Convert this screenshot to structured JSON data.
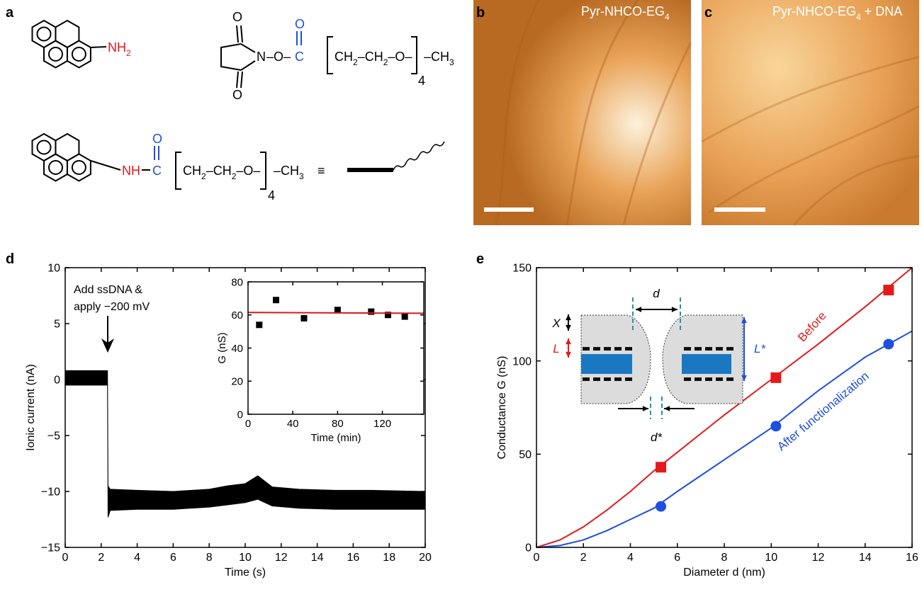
{
  "panel_labels": [
    "a",
    "b",
    "c",
    "d",
    "e"
  ],
  "panel_a": {
    "amine": [
      "NH",
      "2"
    ],
    "nhs_ester": {
      "o_top": "O",
      "n": "N",
      "o_bottom": "O",
      "link": "–O–",
      "c": "C",
      "o_carbonyl": "O",
      "chain": [
        "CH",
        "2",
        "–CH",
        "2",
        "–O–",
        "4",
        "–CH",
        "3"
      ]
    },
    "product": {
      "nh": "NH",
      "c": "C",
      "o_carbonyl": "O",
      "chain": [
        "CH",
        "2",
        "–CH",
        "2",
        "–O–",
        "4",
        "–CH",
        "3"
      ],
      "equiv": "≡"
    }
  },
  "panel_b": {
    "label": [
      "Pyr-NHCO-EG",
      "4"
    ]
  },
  "panel_c": {
    "label": [
      "Pyr-NHCO-EG",
      "4",
      " + DNA"
    ]
  },
  "chart_data": [
    {
      "type": "line",
      "x_label": "Time (s)",
      "y_label": "Ionic current (nA)",
      "xlim": [
        0,
        20
      ],
      "xticks": [
        0,
        2,
        4,
        6,
        8,
        10,
        12,
        14,
        16,
        18,
        20
      ],
      "ylim": [
        -15,
        10
      ],
      "yticks": [
        {
          "value": -15,
          "label": "−15"
        },
        {
          "value": -10,
          "label": "−10"
        },
        {
          "value": -5,
          "label": "−5"
        },
        0,
        5,
        10
      ],
      "x": [
        0,
        2.35,
        2.38,
        2.5,
        4,
        6,
        8,
        9,
        10,
        10.7,
        11.5,
        13,
        15,
        17,
        20
      ],
      "series": [
        {
          "color": "#000000",
          "values_high": [
            0.8,
            0.8,
            -9.5,
            -9.8,
            -9.9,
            -10,
            -9.8,
            -9.5,
            -9.3,
            -8.6,
            -9.6,
            -9.8,
            -9.9,
            -9.9,
            -10.0
          ],
          "values_low": [
            -0.5,
            -0.5,
            -12.3,
            -11.7,
            -11.6,
            -11.6,
            -11.4,
            -11.2,
            -11.0,
            -10.7,
            -11.3,
            -11.5,
            -11.6,
            -11.6,
            -11.6
          ]
        }
      ],
      "annotation": [
        "Add ssDNA &",
        "apply −200 mV"
      ]
    },
    {
      "type": "scatter",
      "x_label": "Time (min)",
      "y_label": "G (nS)",
      "xlim": [
        0,
        157
      ],
      "xticks": [
        0,
        40,
        80,
        120
      ],
      "ylim": [
        0,
        80
      ],
      "yticks": [
        0,
        20,
        40,
        60,
        80
      ],
      "series": [
        {
          "color": "#000000",
          "marker": "square",
          "x": [
            10,
            25,
            50,
            80,
            110,
            125,
            140
          ],
          "values": [
            54,
            69,
            58,
            63,
            62,
            60,
            59
          ]
        },
        {
          "color": "#d7191c",
          "line": true,
          "x": [
            0,
            157
          ],
          "values": [
            61.5,
            61
          ]
        }
      ]
    },
    {
      "type": "scatter",
      "x_label": "Diameter d (nm)",
      "y_label": "Conductance G (nS)",
      "xlim": [
        0,
        16
      ],
      "xticks": [
        0,
        2,
        4,
        6,
        8,
        10,
        12,
        14,
        16
      ],
      "ylim": [
        0,
        150
      ],
      "yticks": [
        0,
        50,
        100,
        150
      ],
      "series": [
        {
          "name": "Before",
          "color": "#e31a1c",
          "marker": "square",
          "x": [
            5.3,
            10.2,
            15
          ],
          "values": [
            43,
            91,
            138
          ],
          "fit_x": [
            0,
            1,
            2,
            3,
            4,
            5,
            6,
            8,
            10,
            12,
            14,
            16
          ],
          "fit_values": [
            0,
            4,
            11,
            20,
            30,
            41,
            51,
            71,
            90,
            109,
            129,
            150
          ]
        },
        {
          "name": "After functionalization",
          "color": "#1f4fe0",
          "marker": "circle",
          "x": [
            5.3,
            10.2,
            15
          ],
          "values": [
            22,
            65,
            109
          ],
          "fit_x": [
            0,
            1,
            2,
            3,
            4,
            5,
            6,
            8,
            10,
            12,
            14,
            16
          ],
          "fit_values": [
            0,
            1,
            4,
            9,
            15,
            21,
            30,
            47,
            64,
            84,
            102,
            116
          ]
        }
      ],
      "diagram_labels": [
        "d",
        "X",
        "L",
        "L*",
        "d*"
      ]
    }
  ]
}
